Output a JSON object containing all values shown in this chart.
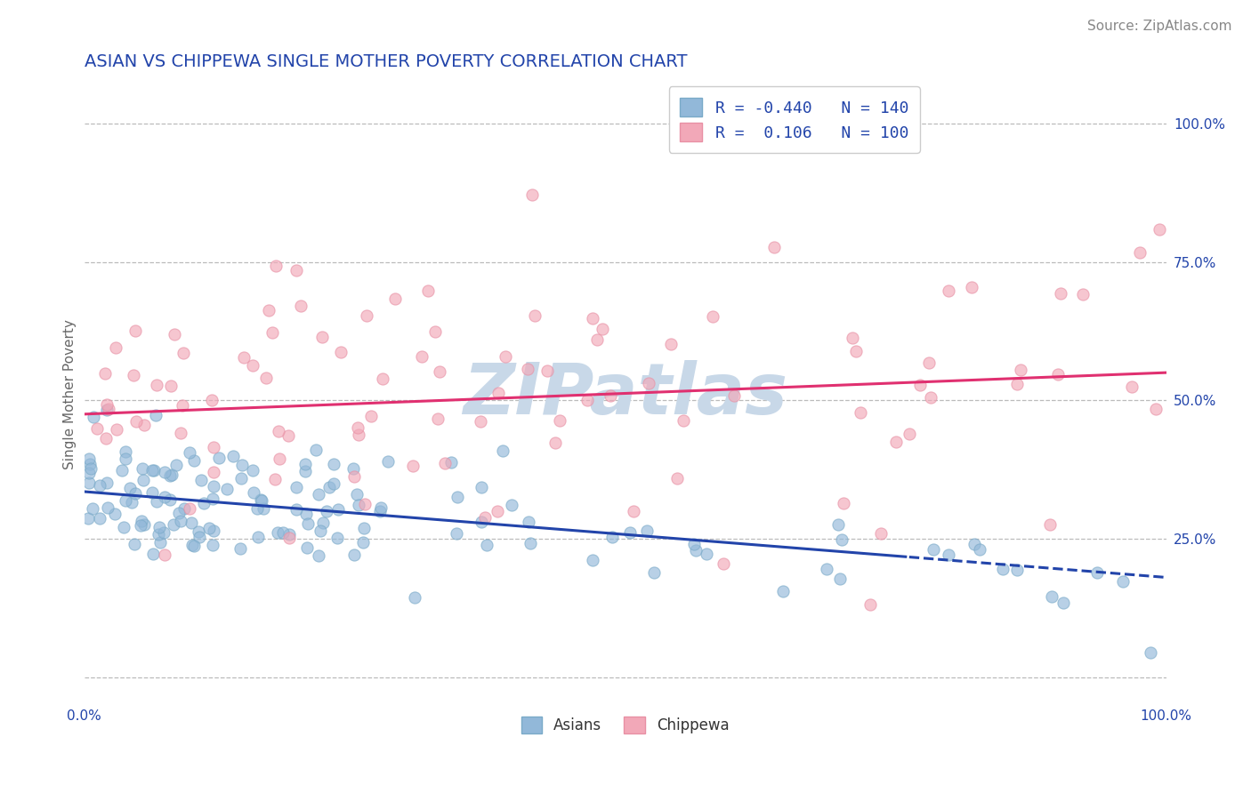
{
  "title": "ASIAN VS CHIPPEWA SINGLE MOTHER POVERTY CORRELATION CHART",
  "source_text": "Source: ZipAtlas.com",
  "ylabel": "Single Mother Poverty",
  "xlabel": "",
  "xlim": [
    0.0,
    1.0
  ],
  "ylim": [
    -0.05,
    1.07
  ],
  "asian_color": "#92b8d9",
  "asian_edge_color": "#7aaac8",
  "chippewa_color": "#f2a8b8",
  "chippewa_edge_color": "#e890a4",
  "asian_line_color": "#2244aa",
  "chippewa_line_color": "#e03070",
  "background_color": "#ffffff",
  "grid_color": "#bbbbbb",
  "legend_label_asian": "Asians",
  "legend_label_chippewa": "Chippewa",
  "R_asian": -0.44,
  "N_asian": 140,
  "R_chippewa": 0.106,
  "N_chippewa": 100,
  "watermark": "ZIPatlas",
  "watermark_color": "#c8d8e8",
  "title_color": "#2244aa",
  "axis_label_color": "#666666",
  "tick_label_color": "#2244aa",
  "legend_R_color": "#2244aa",
  "title_fontsize": 14,
  "source_fontsize": 11,
  "ylabel_fontsize": 11,
  "legend_fontsize": 13,
  "asian_line_intercept": 0.335,
  "asian_line_slope": -0.155,
  "chippewa_line_intercept": 0.475,
  "chippewa_line_slope": 0.075,
  "asian_cutoff": 0.76
}
